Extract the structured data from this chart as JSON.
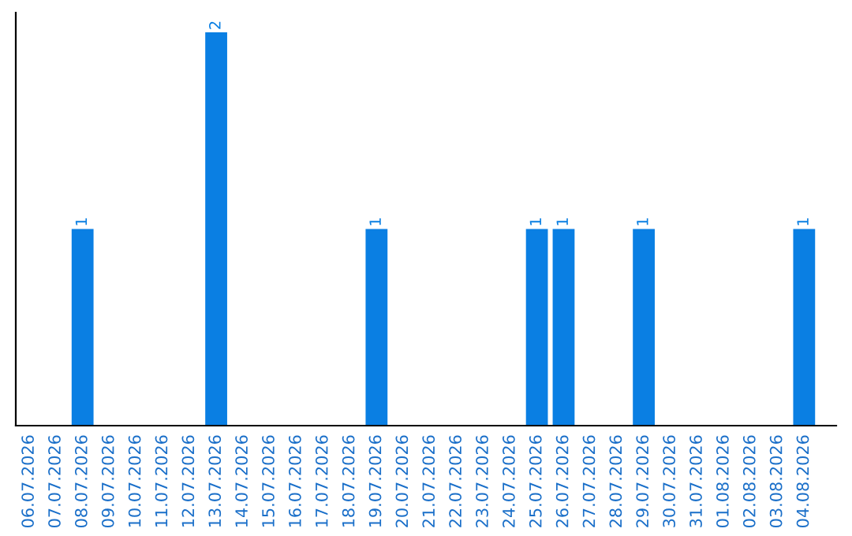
{
  "chart_data": {
    "type": "bar",
    "categories": [
      "06.07.2026",
      "07.07.2026",
      "08.07.2026",
      "09.07.2026",
      "10.07.2026",
      "11.07.2026",
      "12.07.2026",
      "13.07.2026",
      "14.07.2026",
      "15.07.2026",
      "16.07.2026",
      "17.07.2026",
      "18.07.2026",
      "19.07.2026",
      "20.07.2026",
      "21.07.2026",
      "22.07.2026",
      "23.07.2026",
      "24.07.2026",
      "25.07.2026",
      "26.07.2026",
      "27.07.2026",
      "28.07.2026",
      "29.07.2026",
      "30.07.2026",
      "31.07.2026",
      "01.08.2026",
      "02.08.2026",
      "03.08.2026",
      "04.08.2026"
    ],
    "values": [
      0,
      0,
      1,
      0,
      0,
      0,
      0,
      2,
      0,
      0,
      0,
      0,
      0,
      1,
      0,
      0,
      0,
      0,
      0,
      1,
      1,
      0,
      0,
      1,
      0,
      0,
      0,
      0,
      0,
      1
    ],
    "value_labels": [
      null,
      null,
      "1",
      null,
      null,
      null,
      null,
      "2",
      null,
      null,
      null,
      null,
      null,
      "1",
      null,
      null,
      null,
      null,
      null,
      "1",
      "1",
      null,
      null,
      "1",
      null,
      null,
      null,
      null,
      null,
      "1"
    ],
    "color": "#0a7fe3",
    "ylim": [
      0,
      2.1
    ],
    "tick_labels": "x",
    "grid": false,
    "legend": false
  }
}
